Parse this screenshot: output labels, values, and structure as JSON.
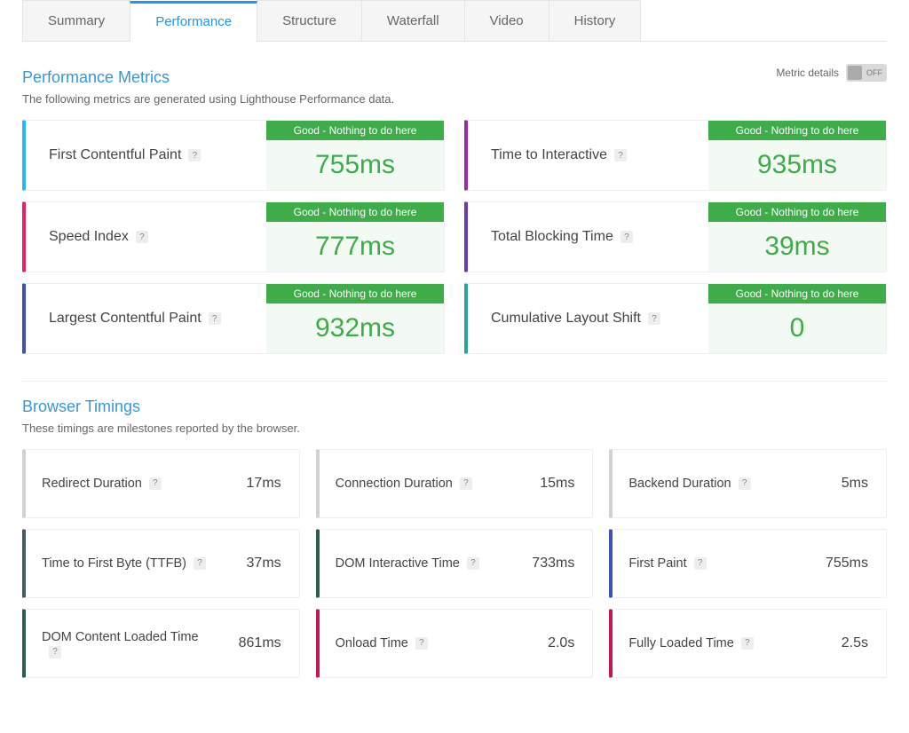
{
  "tabs": {
    "items": [
      {
        "label": "Summary"
      },
      {
        "label": "Performance"
      },
      {
        "label": "Structure"
      },
      {
        "label": "Waterfall"
      },
      {
        "label": "Video"
      },
      {
        "label": "History"
      }
    ],
    "active_index": 1
  },
  "colors": {
    "tab_active_text": "#2196f3",
    "tab_active_border": "#2196f3",
    "tab_inactive_bg": "#f5f5f5",
    "section_title": "#3498db",
    "status_good_bg": "#3eac49",
    "status_good_value_bg": "#f2faf3",
    "status_good_value_text": "#3eac49",
    "card_border": "#eeeeee"
  },
  "metric_details_toggle": {
    "label": "Metric details",
    "state": "OFF"
  },
  "performance_metrics": {
    "title": "Performance Metrics",
    "subtitle": "The following metrics are generated using Lighthouse Performance data.",
    "status_text": "Good - Nothing to do here",
    "cards": [
      {
        "label": "First Contentful Paint",
        "value": "755ms",
        "accent": "#29b6f6"
      },
      {
        "label": "Time to Interactive",
        "value": "935ms",
        "accent": "#9c27b0"
      },
      {
        "label": "Speed Index",
        "value": "777ms",
        "accent": "#e91e63"
      },
      {
        "label": "Total Blocking Time",
        "value": "39ms",
        "accent": "#673ab7"
      },
      {
        "label": "Largest Contentful Paint",
        "value": "932ms",
        "accent": "#3f51b5"
      },
      {
        "label": "Cumulative Layout Shift",
        "value": "0",
        "accent": "#26a69a"
      }
    ]
  },
  "browser_timings": {
    "title": "Browser Timings",
    "subtitle": "These timings are milestones reported by the browser.",
    "cards": [
      {
        "label": "Redirect Duration",
        "value": "17ms",
        "accent": "#cfd2d4"
      },
      {
        "label": "Connection Duration",
        "value": "15ms",
        "accent": "#cfd2d4"
      },
      {
        "label": "Backend Duration",
        "value": "5ms",
        "accent": "#cfd2d4"
      },
      {
        "label": "Time to First Byte (TTFB)",
        "value": "37ms",
        "accent": "#455a64"
      },
      {
        "label": "DOM Interactive Time",
        "value": "733ms",
        "accent": "#2e5d50"
      },
      {
        "label": "First Paint",
        "value": "755ms",
        "accent": "#3f51b5"
      },
      {
        "label": "DOM Content Loaded Time",
        "value": "861ms",
        "accent": "#2e5d50"
      },
      {
        "label": "Onload Time",
        "value": "2.0s",
        "accent": "#c2185b"
      },
      {
        "label": "Fully Loaded Time",
        "value": "2.5s",
        "accent": "#c2185b"
      }
    ]
  }
}
